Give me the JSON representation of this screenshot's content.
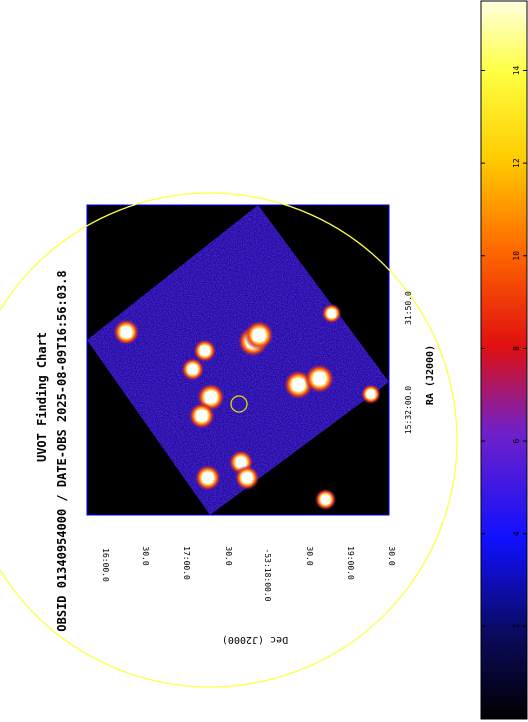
{
  "chart_data": {
    "type": "heatmap",
    "title": "UVOT Finding Chart",
    "subtitle": "OBSID 01340954000 / DATE-OBS 2025-08-09T16:56:03.8",
    "xlabel": "RA (J2000)",
    "ylabel": "Dec (J2000)",
    "ra_ticks": [
      "15:32:00.0",
      "31:50.0"
    ],
    "dec_ticks": [
      "16:00.0",
      "30.0",
      "17:00.0",
      "30.0",
      "-53:18:00.0",
      "30.0",
      "19:00.0",
      "30.0"
    ],
    "colorbar": {
      "ticks": [
        "0",
        "2",
        "4",
        "6",
        "8",
        "10",
        "12",
        "14"
      ],
      "range": [
        0,
        15.5
      ],
      "colormap": "gnuplot2-like (black-blue-red-yellow-white)"
    },
    "sources": [
      {
        "ra_frac": 0.55,
        "dec_frac": 0.44,
        "brightness": 15
      },
      {
        "ra_frac": 0.57,
        "dec_frac": 0.42,
        "brightness": 14
      },
      {
        "ra_frac": 0.7,
        "dec_frac": 0.58,
        "brightness": 14
      },
      {
        "ra_frac": 0.77,
        "dec_frac": 0.56,
        "brightness": 14
      },
      {
        "ra_frac": 0.41,
        "dec_frac": 0.62,
        "brightness": 13
      },
      {
        "ra_frac": 0.38,
        "dec_frac": 0.68,
        "brightness": 12
      },
      {
        "ra_frac": 0.13,
        "dec_frac": 0.41,
        "brightness": 12
      },
      {
        "ra_frac": 0.4,
        "dec_frac": 0.88,
        "brightness": 12
      },
      {
        "ra_frac": 0.51,
        "dec_frac": 0.83,
        "brightness": 11
      },
      {
        "ra_frac": 0.53,
        "dec_frac": 0.88,
        "brightness": 11
      },
      {
        "ra_frac": 0.39,
        "dec_frac": 0.47,
        "brightness": 10
      },
      {
        "ra_frac": 0.35,
        "dec_frac": 0.53,
        "brightness": 10
      },
      {
        "ra_frac": 0.79,
        "dec_frac": 0.95,
        "brightness": 9
      },
      {
        "ra_frac": 0.94,
        "dec_frac": 0.61,
        "brightness": 8
      },
      {
        "ra_frac": 0.81,
        "dec_frac": 0.35,
        "brightness": 8
      }
    ],
    "target_marker": {
      "ra_frac": 0.5,
      "dec_frac": 0.66
    },
    "field_circle": true,
    "colors": {
      "frame_border": "#0000ff",
      "field_circle": "#ffff44",
      "target_circle": "#dddd00",
      "background": "#000000"
    }
  }
}
